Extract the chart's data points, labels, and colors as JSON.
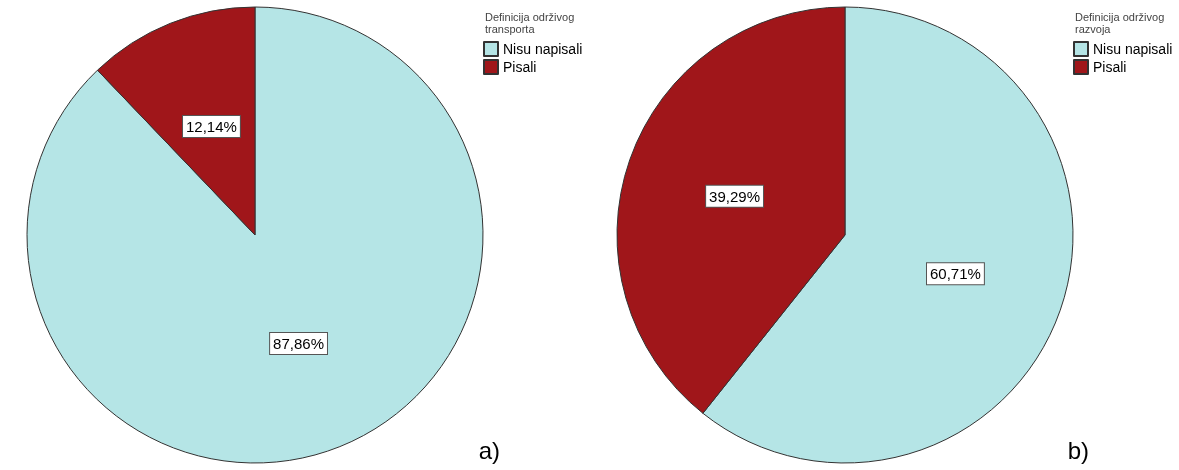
{
  "chart_data": [
    {
      "type": "pie",
      "legend_title": "Definicija održivog transporta",
      "categories": [
        "Nisu napisali",
        "Pisali"
      ],
      "values": [
        87.86,
        12.14
      ],
      "colors": [
        "#b5e5e6",
        "#a0161a"
      ],
      "value_labels": [
        "87,86%",
        "12,14%"
      ],
      "legend": "top right",
      "annotations": [
        "a)"
      ]
    },
    {
      "type": "pie",
      "legend_title": "Definicija održivog razvoja",
      "categories": [
        "Nisu napisali",
        "Pisali"
      ],
      "values": [
        60.71,
        39.29
      ],
      "colors": [
        "#b5e5e6",
        "#a0161a"
      ],
      "value_labels": [
        "60,71%",
        "39,29%"
      ],
      "legend": "top right",
      "annotations": [
        "b)"
      ]
    }
  ]
}
